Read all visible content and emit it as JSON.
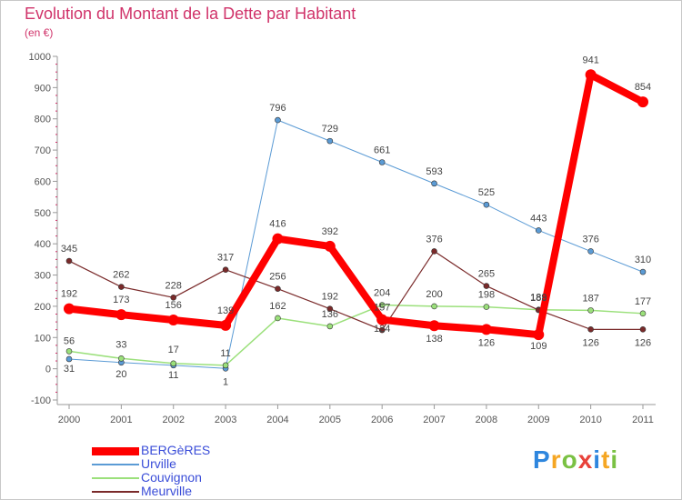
{
  "header": {
    "title": "Evolution du Montant de la Dette par Habitant",
    "subtitle": "(en €)"
  },
  "logo": {
    "text": "Proxiti",
    "letters": [
      {
        "ch": "P",
        "color": "#2e86de"
      },
      {
        "ch": "r",
        "color": "#f5a623"
      },
      {
        "ch": "o",
        "color": "#7ac143"
      },
      {
        "ch": "x",
        "color": "#e8423a"
      },
      {
        "ch": "i",
        "color": "#2e86de"
      },
      {
        "ch": "t",
        "color": "#f5a623"
      },
      {
        "ch": "i",
        "color": "#7ac143"
      }
    ]
  },
  "chart_data": {
    "type": "line",
    "title": "Evolution du Montant de la Dette par Habitant",
    "subtitle": "(en €)",
    "x": [
      "2000",
      "2001",
      "2002",
      "2003",
      "2004",
      "2005",
      "2006",
      "2007",
      "2008",
      "2009",
      "2010",
      "2011"
    ],
    "ylim": [
      -100,
      1000
    ],
    "yticks": [
      -100,
      0,
      100,
      200,
      300,
      400,
      500,
      600,
      700,
      800,
      900,
      1000
    ],
    "grid": false,
    "legend_position": "bottom-left",
    "series": [
      {
        "name": "Urville",
        "color": "#5b9bd5",
        "width": 1,
        "values": [
          31,
          20,
          11,
          1,
          796,
          729,
          661,
          593,
          525,
          443,
          376,
          310
        ],
        "labels": [
          "31",
          "20",
          "11",
          "1",
          "796",
          "729",
          "661",
          "593",
          "525",
          "443",
          "376",
          "310"
        ]
      },
      {
        "name": "Couvignon",
        "color": "#9be07b",
        "width": 1.5,
        "values": [
          56,
          33,
          17,
          11,
          162,
          136,
          204,
          200,
          198,
          189,
          187,
          177
        ],
        "labels": [
          "56",
          "33",
          "17",
          "11",
          "162",
          "136",
          "204",
          "200",
          "198",
          "189",
          "187",
          "177"
        ]
      },
      {
        "name": "Meurville",
        "color": "#7a2a2a",
        "width": 1.2,
        "values": [
          345,
          262,
          228,
          317,
          256,
          192,
          124,
          376,
          265,
          188,
          126,
          126
        ],
        "labels": [
          "345",
          "262",
          "228",
          "317",
          "256",
          "192",
          "124",
          "376",
          "265",
          "188",
          "126",
          "126"
        ]
      },
      {
        "name": "BERGèRES",
        "color": "#ff0000",
        "width": 8,
        "values": [
          192,
          173,
          156,
          139,
          416,
          392,
          157,
          138,
          126,
          109,
          941,
          854
        ],
        "labels": [
          "192",
          "173",
          "156",
          "139",
          "416",
          "392",
          "157",
          "138",
          "126",
          "109",
          "941",
          "854"
        ]
      }
    ],
    "legend_order": [
      "BERGèRES",
      "Urville",
      "Couvignon",
      "Meurville"
    ]
  }
}
